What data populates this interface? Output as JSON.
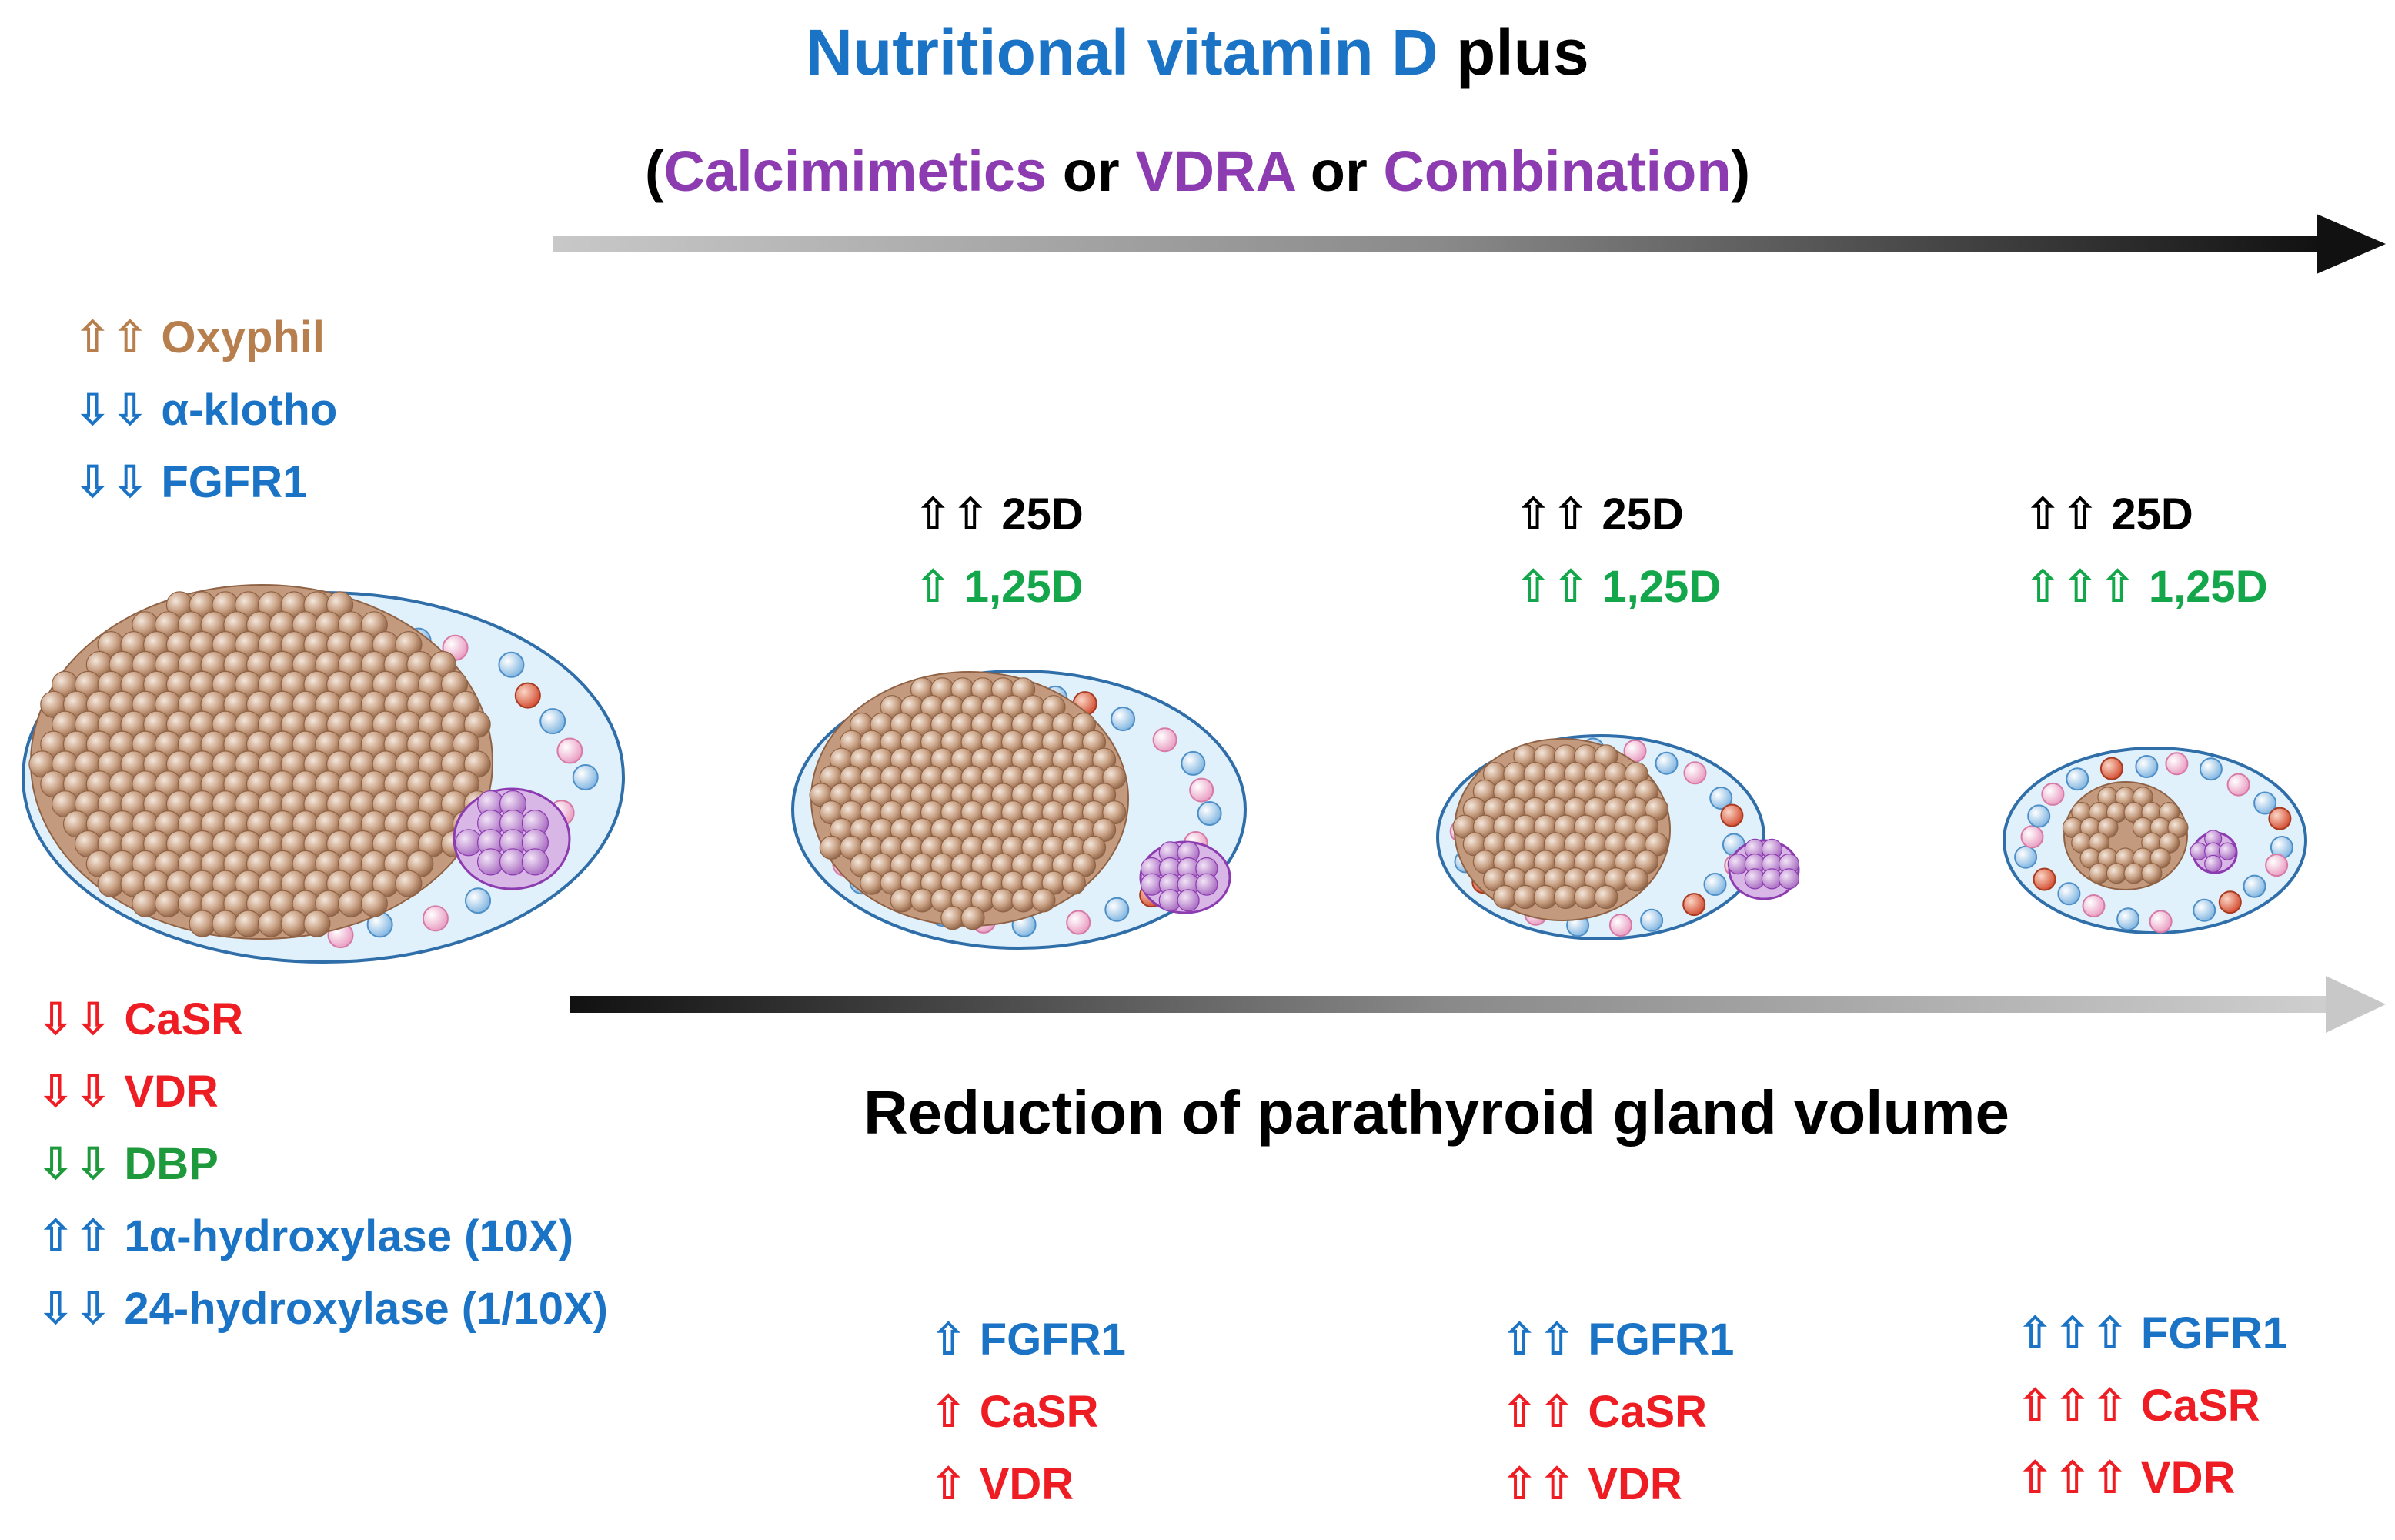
{
  "header": {
    "title_part1": "Nutritional vitamin D",
    "title_part2": " plus",
    "subtitle_open": "(",
    "subtitle_calcimimetics": "Calcimimetics",
    "subtitle_or1": " or ",
    "subtitle_vdra": "VDRA",
    "subtitle_or2": " or ",
    "subtitle_combination": "Combination",
    "subtitle_close": ")"
  },
  "left_top_markers": [
    {
      "arrows": "⇧⇧",
      "label": "Oxyphil"
    },
    {
      "arrows": "⇩⇩",
      "label": " α-klotho"
    },
    {
      "arrows": "⇩⇩",
      "label": " FGFR1"
    }
  ],
  "left_bottom_markers": [
    {
      "arrows": "⇩⇩",
      "label": "CaSR"
    },
    {
      "arrows": "⇩⇩",
      "label": "VDR"
    },
    {
      "arrows": "⇩⇩",
      "label": "DBP"
    },
    {
      "arrows": "⇧⇧",
      "label": "1α-hydroxylase (10X)"
    },
    {
      "arrows": "⇩⇩",
      "label": " 24-hydroxylase (1/10X)"
    }
  ],
  "stages": [
    {
      "top": [
        {
          "arrows": "⇧⇧",
          "label": "25D"
        },
        {
          "arrows": "⇧",
          "label": "1,25D"
        }
      ],
      "bottom": [
        {
          "arrows": "⇧",
          "label": "FGFR1"
        },
        {
          "arrows": "⇧",
          "label": "CaSR"
        },
        {
          "arrows": "⇧",
          "label": "VDR"
        }
      ]
    },
    {
      "top": [
        {
          "arrows": "⇧⇧",
          "label": "25D"
        },
        {
          "arrows": "⇧⇧",
          "label": "1,25D"
        }
      ],
      "bottom": [
        {
          "arrows": "⇧⇧",
          "label": "FGFR1"
        },
        {
          "arrows": "⇧⇧",
          "label": "CaSR"
        },
        {
          "arrows": "⇧⇧",
          "label": "VDR"
        }
      ]
    },
    {
      "top": [
        {
          "arrows": "⇧⇧",
          "label": "25D"
        },
        {
          "arrows": "⇧⇧⇧",
          "label": "1,25D"
        }
      ],
      "bottom": [
        {
          "arrows": "⇧⇧⇧",
          "label": "FGFR1"
        },
        {
          "arrows": "⇧⇧⇧",
          "label": "CaSR"
        },
        {
          "arrows": "⇧⇧⇧",
          "label": "VDR"
        }
      ]
    }
  ],
  "bottom_arrow_label": "Reduction of parathyroid gland volume",
  "colors": {
    "blue": "#1a73c5",
    "purple": "#8c3bb0",
    "brown": "#b87f4e",
    "red": "#ee1d23",
    "green": "#14a64a",
    "darkgreen": "#1e9a3c",
    "black": "#000000"
  }
}
